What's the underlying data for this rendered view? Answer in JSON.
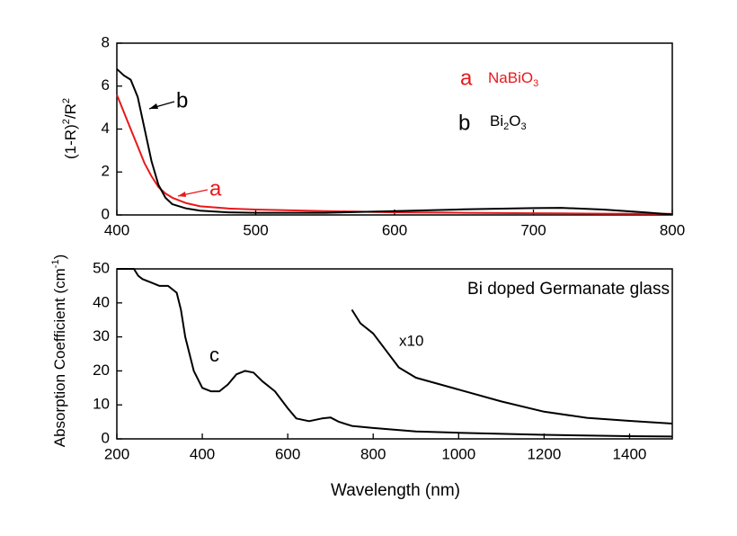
{
  "chart_data": [
    {
      "type": "line",
      "ylabel": [
        "(1-R)",
        "2",
        "/R",
        "2"
      ],
      "xlim": [
        400,
        800
      ],
      "ylim": [
        0,
        8
      ],
      "xticks": [
        400,
        500,
        600,
        700,
        800
      ],
      "yticks": [
        0,
        2,
        4,
        6,
        8
      ],
      "x": [
        400,
        405,
        410,
        415,
        420,
        425,
        430,
        435,
        440,
        450,
        460,
        480,
        500,
        550,
        600,
        650,
        700,
        720,
        750,
        780,
        800
      ],
      "series": [
        {
          "name": "a",
          "color": "#e8181b",
          "legend": [
            "NaBiO",
            "3"
          ],
          "values": [
            5.6,
            4.8,
            4.0,
            3.2,
            2.4,
            1.8,
            1.3,
            1.0,
            0.8,
            0.55,
            0.4,
            0.3,
            0.25,
            0.18,
            0.12,
            0.1,
            0.08,
            0.07,
            0.06,
            0.05,
            0.05
          ]
        },
        {
          "name": "b",
          "color": "#000000",
          "legend": [
            "Bi",
            "2",
            "O",
            "3"
          ],
          "values": [
            6.8,
            6.5,
            6.3,
            5.5,
            4.0,
            2.5,
            1.4,
            0.8,
            0.5,
            0.3,
            0.2,
            0.12,
            0.1,
            0.1,
            0.18,
            0.26,
            0.32,
            0.33,
            0.25,
            0.12,
            0.02
          ]
        }
      ]
    },
    {
      "type": "line",
      "xlabel": "Wavelength (nm)",
      "ylabel": [
        "Absorption Coefficient (cm",
        "-1",
        ")"
      ],
      "annotation": "Bi doped Germanate glass",
      "xlim": [
        200,
        1500
      ],
      "ylim": [
        0,
        50
      ],
      "xticks": [
        200,
        400,
        600,
        800,
        1000,
        1200,
        1400
      ],
      "yticks": [
        0,
        10,
        20,
        30,
        40,
        50
      ],
      "series": [
        {
          "name": "c",
          "color": "#000000",
          "x": [
            200,
            240,
            250,
            260,
            280,
            300,
            320,
            340,
            350,
            360,
            380,
            400,
            420,
            440,
            460,
            480,
            500,
            520,
            540,
            570,
            600,
            620,
            650,
            680,
            700,
            720,
            750,
            800,
            900,
            1000,
            1200,
            1400,
            1500
          ],
          "values": [
            50,
            50,
            48,
            47,
            46,
            45,
            45,
            43,
            38,
            30,
            20,
            15,
            14,
            14,
            16,
            19,
            20,
            19.5,
            17,
            14,
            9,
            6,
            5.2,
            6,
            6.3,
            5,
            3.8,
            3.2,
            2.2,
            1.8,
            1.2,
            0.8,
            0.7
          ]
        },
        {
          "name": "x10",
          "color": "#000000",
          "x": [
            750,
            770,
            800,
            830,
            860,
            900,
            1000,
            1100,
            1200,
            1300,
            1400,
            1500
          ],
          "values": [
            38,
            34,
            31,
            26,
            21,
            18,
            14.5,
            11,
            8,
            6.2,
            5.3,
            4.5
          ]
        }
      ]
    }
  ]
}
